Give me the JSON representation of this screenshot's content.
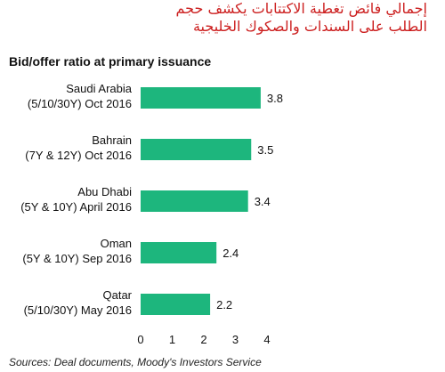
{
  "title_ar": {
    "line1": "إجمالي فائض تغطية الاكتتابات يكشف حجم",
    "line2": "الطلب على السندات والصكوك الخليجية"
  },
  "chart_data": {
    "type": "bar",
    "orientation": "horizontal",
    "title": "Bid/offer ratio at primary issuance",
    "categories": [
      [
        "Saudi Arabia",
        "(5/10/30Y) Oct 2016"
      ],
      [
        "Bahrain",
        "(7Y & 12Y) Oct 2016"
      ],
      [
        "Abu Dhabi",
        "(5Y & 10Y) April 2016"
      ],
      [
        "Oman",
        "(5Y & 10Y) Sep 2016"
      ],
      [
        "Qatar",
        "(5/10/30Y) May 2016"
      ]
    ],
    "values": [
      3.8,
      3.5,
      3.4,
      2.4,
      2.2
    ],
    "value_labels": [
      "3.8",
      "3.5",
      "3.4",
      "2.4",
      "2.2"
    ],
    "xlim": [
      0,
      4
    ],
    "xticks": [
      "0",
      "1",
      "2",
      "3",
      "4"
    ],
    "xlabel": "",
    "ylabel": "",
    "grid": false,
    "bar_color": "#1db67d"
  },
  "source": "Sources: Deal documents, Moody's Investors Service"
}
